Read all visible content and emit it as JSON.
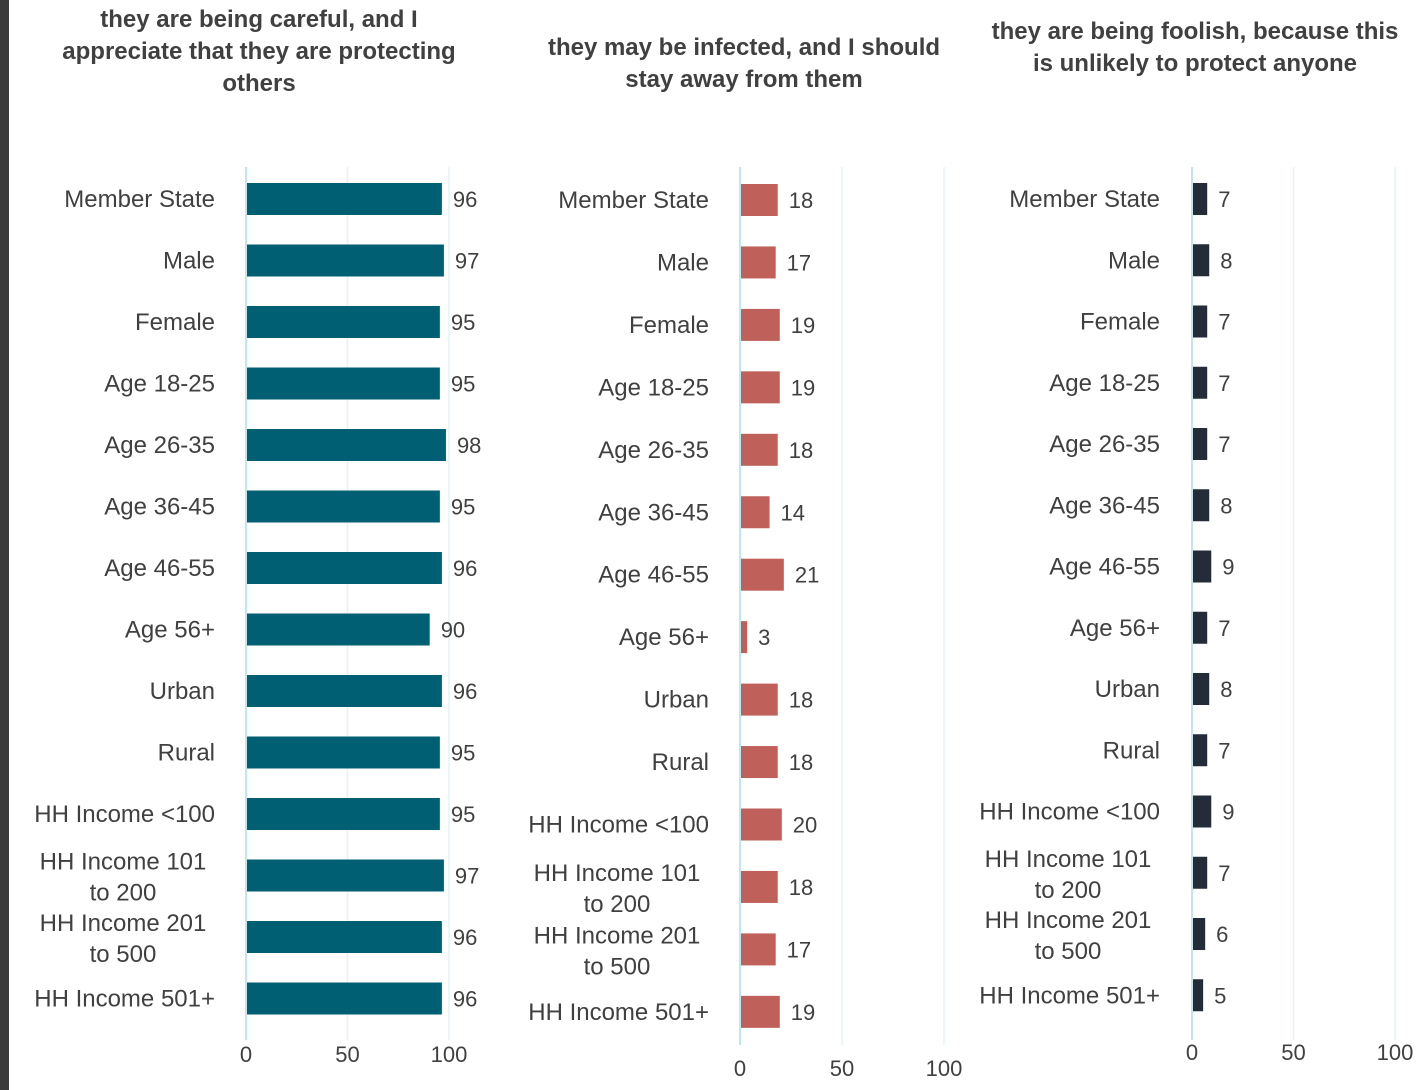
{
  "chart_data": [
    {
      "type": "bar",
      "orientation": "horizontal",
      "title": "they are being careful, and I appreciate that they are protecting others",
      "color": "#005f73",
      "categories": [
        "Member State",
        "Male",
        "Female",
        "Age 18-25",
        "Age 26-35",
        "Age 36-45",
        "Age 46-55",
        "Age 56+",
        "Urban",
        "Rural",
        "HH Income <100",
        "HH Income 101 to 200",
        "HH Income 201 to 500",
        "HH Income 501+"
      ],
      "values": [
        96,
        97,
        95,
        95,
        98,
        95,
        96,
        90,
        96,
        95,
        95,
        97,
        96,
        96
      ],
      "xlim": [
        0,
        100
      ],
      "xticks": [
        "0",
        "50",
        "100"
      ],
      "grid": true
    },
    {
      "type": "bar",
      "orientation": "horizontal",
      "title": "they may be infected, and I should stay away from them",
      "color": "#c0605a",
      "categories": [
        "Member State",
        "Male",
        "Female",
        "Age 18-25",
        "Age 26-35",
        "Age 36-45",
        "Age 46-55",
        "Age 56+",
        "Urban",
        "Rural",
        "HH Income <100",
        "HH Income 101 to 200",
        "HH Income 201 to 500",
        "HH Income 501+"
      ],
      "values": [
        18,
        17,
        19,
        19,
        18,
        14,
        21,
        3,
        18,
        18,
        20,
        18,
        17,
        19
      ],
      "xlim": [
        0,
        100
      ],
      "xticks": [
        "0",
        "50",
        "100"
      ],
      "grid": true
    },
    {
      "type": "bar",
      "orientation": "horizontal",
      "title": "they are being foolish, because this is unlikely to protect anyone",
      "color": "#242c3a",
      "categories": [
        "Member State",
        "Male",
        "Female",
        "Age 18-25",
        "Age 26-35",
        "Age 36-45",
        "Age 46-55",
        "Age 56+",
        "Urban",
        "Rural",
        "HH Income <100",
        "HH Income 101 to 200",
        "HH Income 201 to 500",
        "HH Income 501+"
      ],
      "values": [
        7,
        8,
        7,
        7,
        7,
        8,
        9,
        7,
        8,
        7,
        9,
        7,
        6,
        5
      ],
      "xlim": [
        0,
        100
      ],
      "xticks": [
        "0",
        "50",
        "100"
      ],
      "grid": true
    }
  ]
}
